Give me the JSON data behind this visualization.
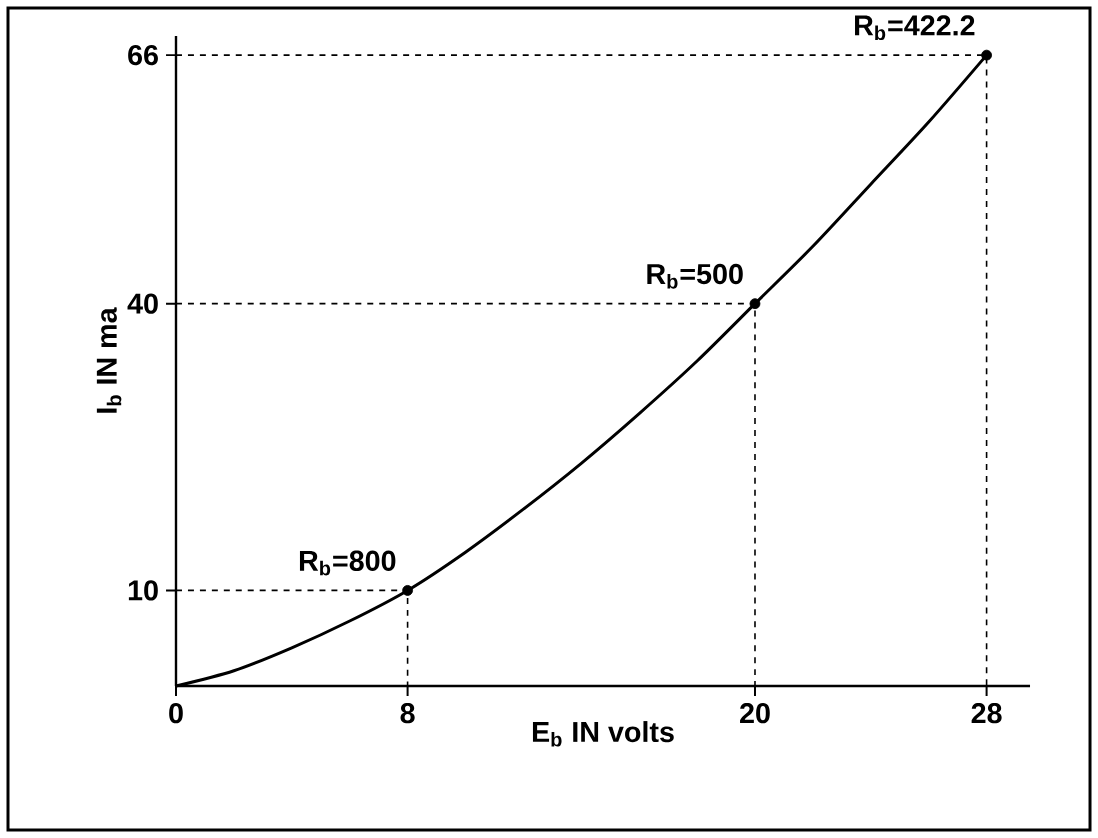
{
  "chart_data": {
    "type": "line",
    "xlabel": "E$_{b}$ IN volts",
    "ylabel": "I$_{b}$ IN ma",
    "xlim": [
      0,
      29.5
    ],
    "ylim": [
      0,
      68
    ],
    "xticks": [
      0,
      8,
      20,
      28
    ],
    "yticks": [
      10,
      40,
      66
    ],
    "grid": false,
    "series": [
      {
        "color": "#000000",
        "x": [
          0,
          2,
          4,
          6,
          8,
          10,
          12,
          14,
          16,
          18,
          20,
          22,
          24,
          26,
          28
        ],
        "values": [
          0,
          1.6,
          4,
          6.8,
          10,
          14,
          18.5,
          23.3,
          28.5,
          34,
          40,
          46,
          52.5,
          59,
          66
        ],
        "marker": "none"
      },
      {
        "color": "#000000",
        "x": [
          0,
          8,
          8
        ],
        "values": [
          10,
          10,
          0
        ],
        "marker": "none",
        "line_style": "dashed"
      },
      {
        "color": "#000000",
        "x": [
          0,
          20,
          20
        ],
        "values": [
          40,
          40,
          0
        ],
        "marker": "none",
        "line_style": "dashed"
      },
      {
        "color": "#000000",
        "x": [
          0,
          28,
          28
        ],
        "values": [
          66,
          66,
          0
        ],
        "marker": "none",
        "line_style": "dashed"
      },
      {
        "type": "scatter",
        "color": "#000000",
        "x": [
          8,
          20,
          28
        ],
        "values": [
          10,
          40,
          66
        ],
        "marker": "circle"
      }
    ],
    "annotations": [
      {
        "text": "R$_{b}$=800",
        "x": 8,
        "y": 10
      },
      {
        "text": "R$_{b}$=500",
        "x": 20,
        "y": 40
      },
      {
        "text": "R$_{b}$=422.2",
        "x": 28,
        "y": 66
      }
    ]
  }
}
